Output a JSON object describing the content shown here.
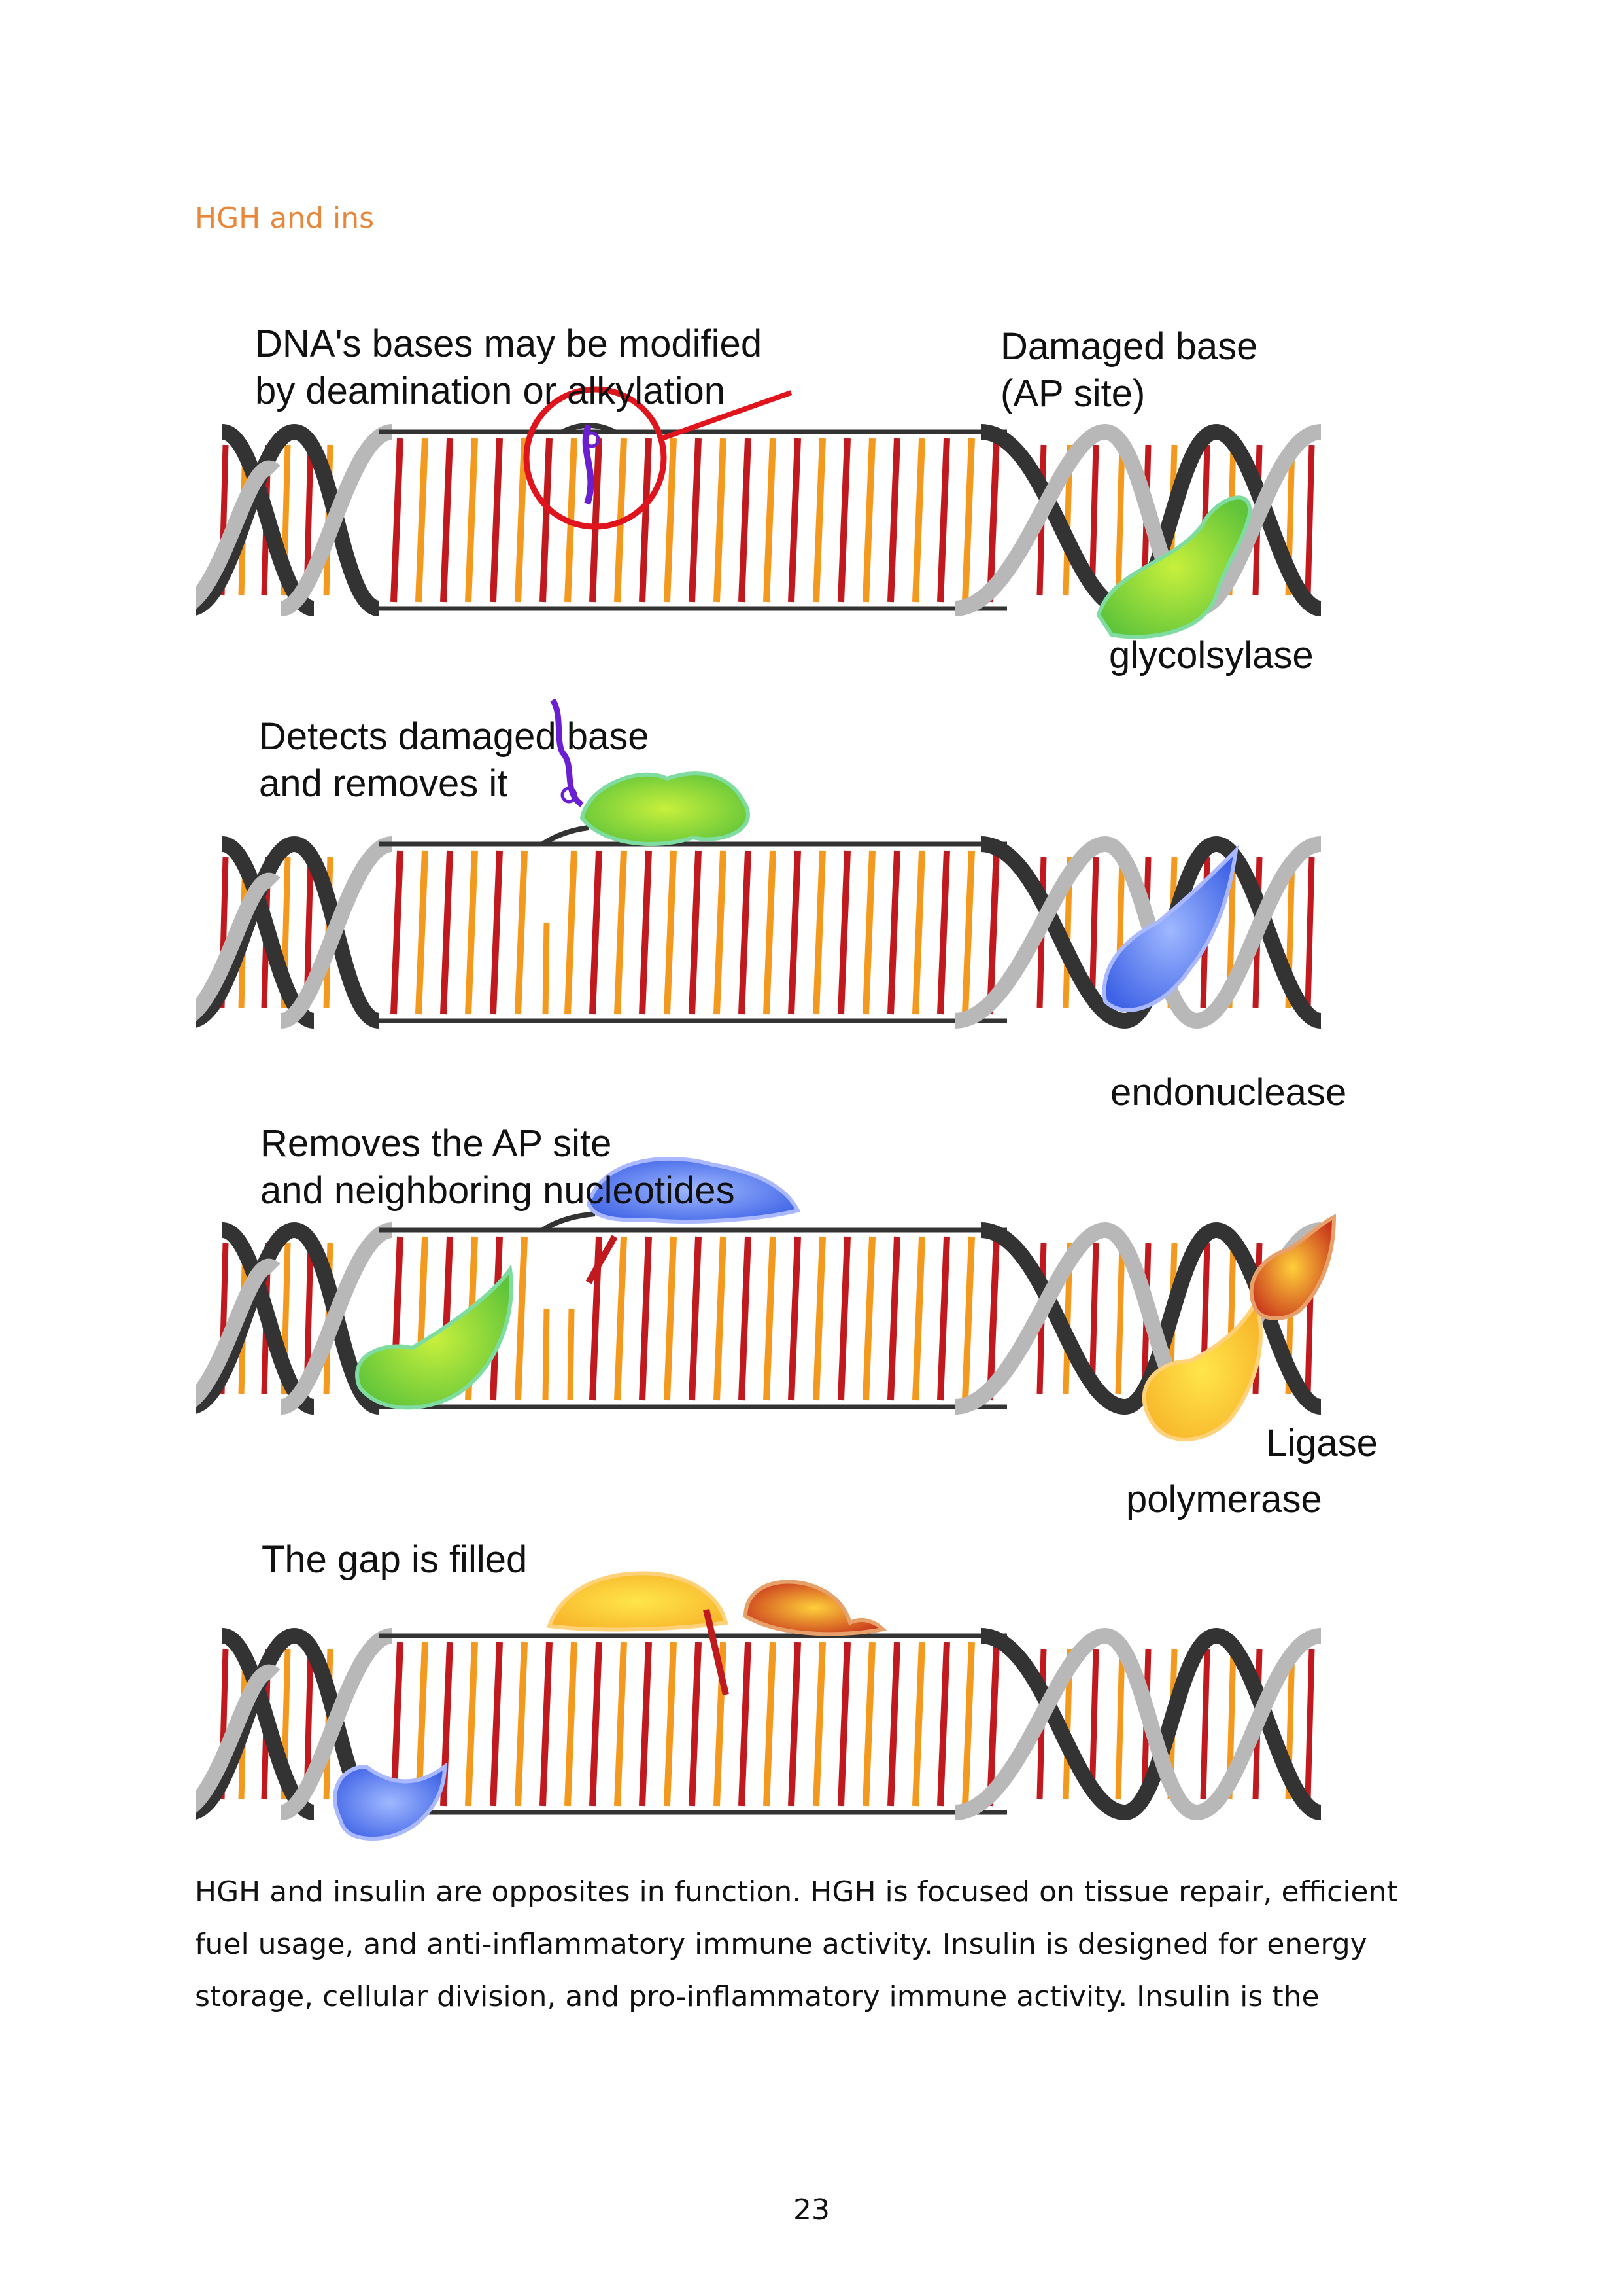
{
  "header": {
    "title": "HGH and ins"
  },
  "figure": {
    "panels": [
      {
        "label_lines": [
          "DNA's bases may be modified",
          "by deamination or alkylation"
        ],
        "callout_lines": [
          "Damaged base",
          "(AP site)"
        ],
        "enzyme_label": "glycolsylase"
      },
      {
        "label_lines": [
          "Detects damaged base",
          "and removes it"
        ],
        "enzyme_label": "endonuclease"
      },
      {
        "label_lines": [
          "Removes the AP site",
          "and neighboring nucleotides"
        ],
        "enzyme_labels": [
          "Ligase",
          "polymerase"
        ]
      },
      {
        "label_lines": [
          "The gap is filled"
        ]
      }
    ],
    "colors": {
      "strand_dark": "#333333",
      "strand_light": "#b8b8b8",
      "base_red": "#c0191e",
      "base_orange": "#f39a1e",
      "callout_red": "#e0141c",
      "enzyme_green": "#5fc43a",
      "enzyme_blue": "#3f63e6",
      "enzyme_yellow": "#f7b52a",
      "enzyme_red": "#c8361c",
      "damaged_base": "#6a1fd0"
    }
  },
  "body": {
    "lines": [
      "HGH and insulin are opposites in function. HGH is focused on tissue repair, efficient",
      "fuel usage, and anti-inflammatory immune activity. Insulin is designed for energy",
      "storage, cellular division, and pro-inflammatory immune activity. Insulin is the"
    ]
  },
  "footer": {
    "page_number": "23"
  }
}
